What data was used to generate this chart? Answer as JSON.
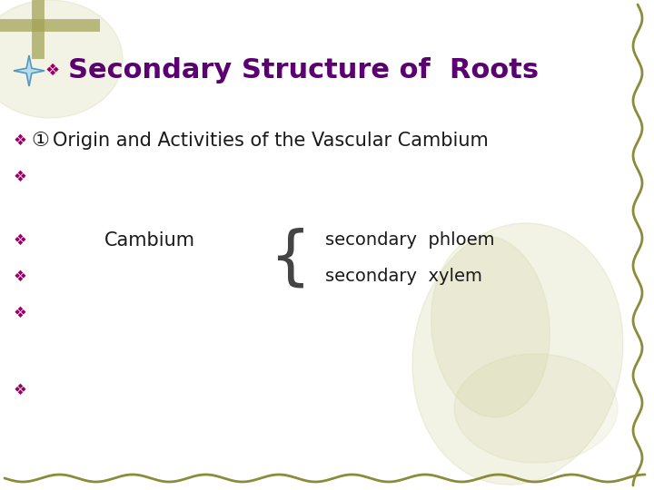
{
  "title": "Secondary Structure of  Roots",
  "title_color": "#5B0070",
  "title_fontsize": 22,
  "background_color": "#FFFFFF",
  "border_color": "#8B8B3A",
  "bullet_color": "#990066",
  "text_color": "#1a1a1a",
  "star_color_fill": "#B8DCEE",
  "star_color_edge": "#5599BB",
  "bullet_symbol": "❖",
  "line1_circle": "①",
  "line1_text": "Origin and Activities of the Vascular Cambium",
  "cambium_label": "Cambium",
  "phloem_label": "secondary  phloem",
  "xylem_label": "secondary  xylem",
  "watermark_color": "#C8C88A",
  "cross_color": "#A0A050"
}
